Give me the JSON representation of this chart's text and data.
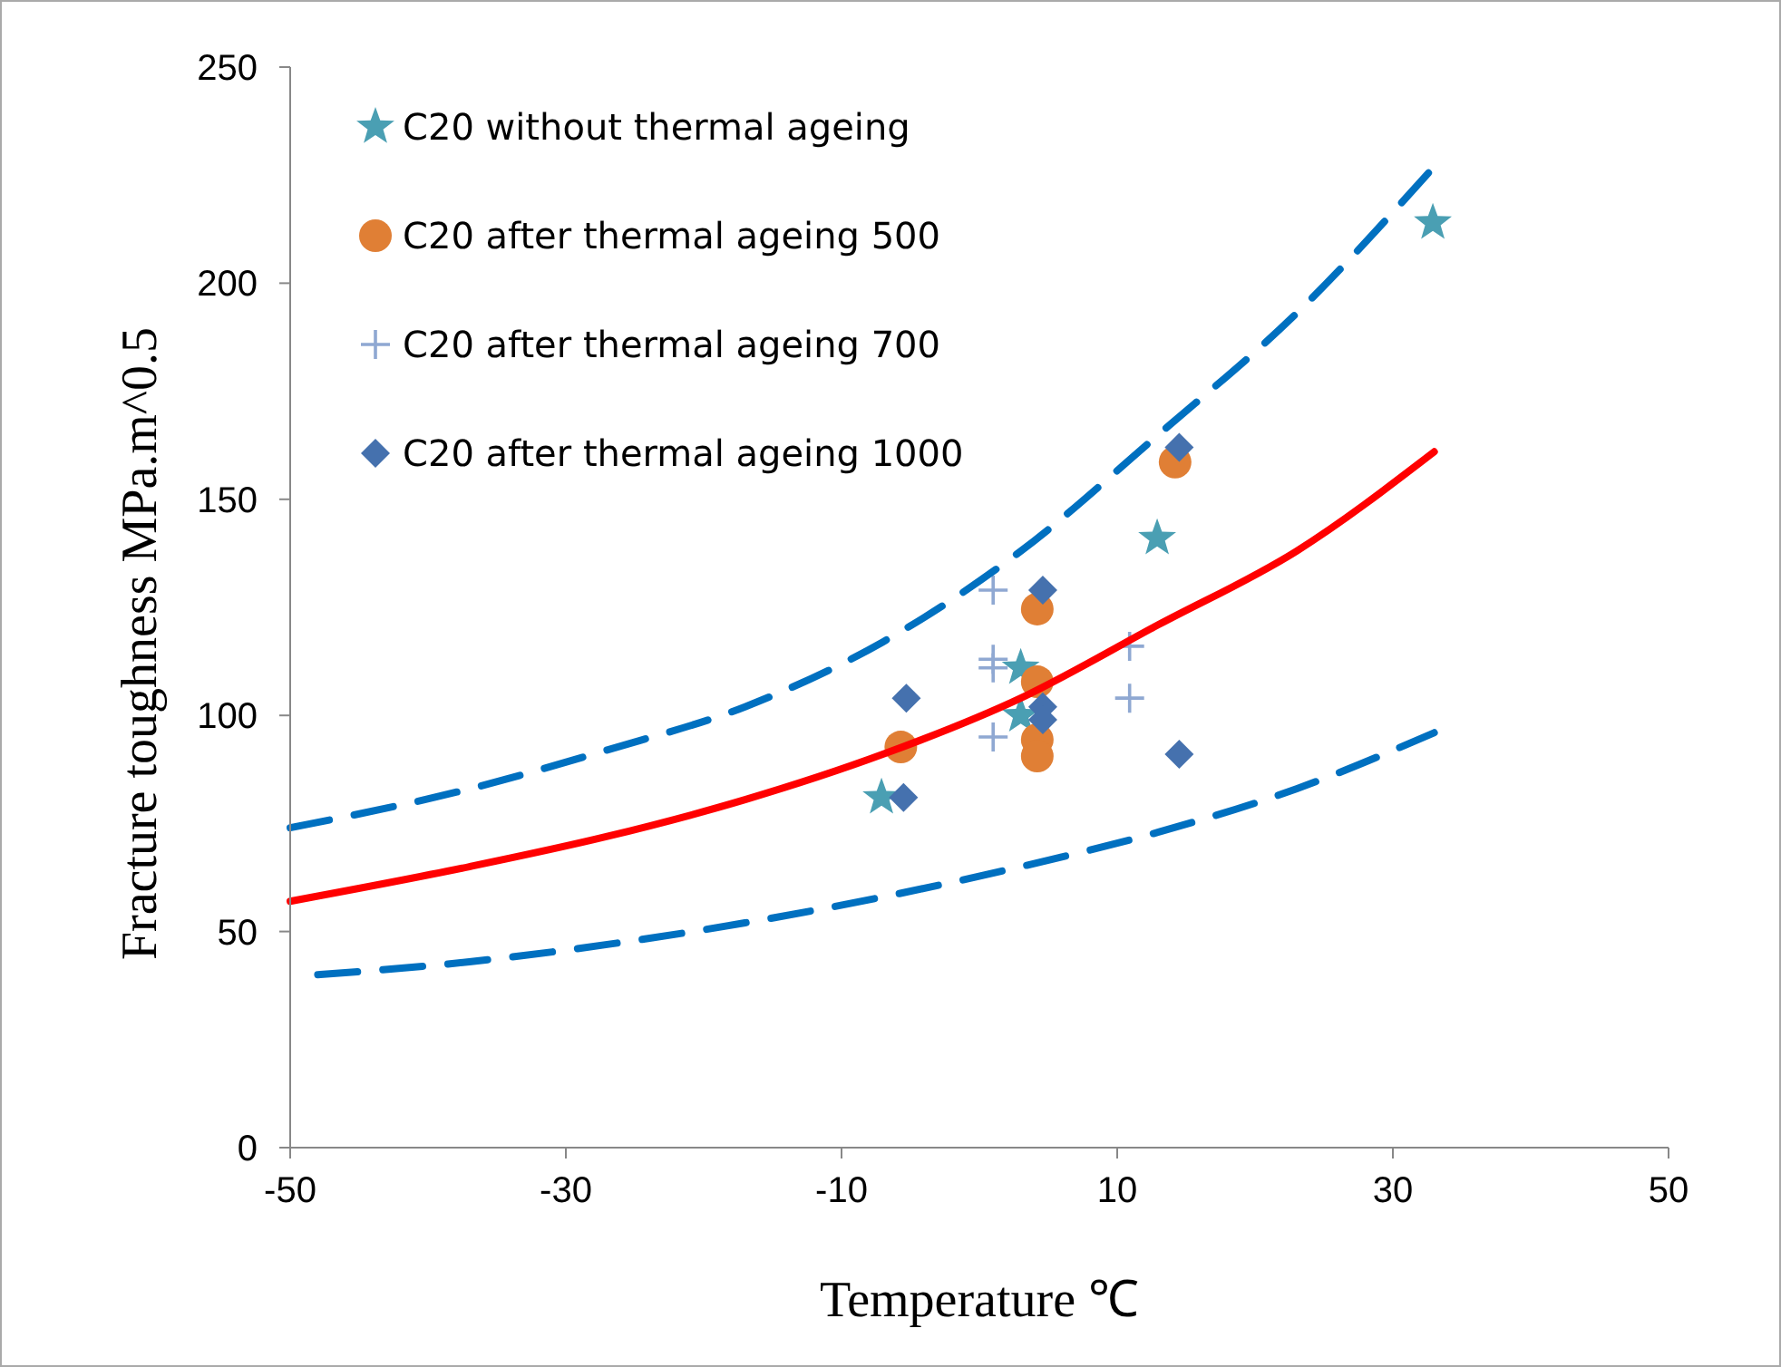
{
  "chart_data": {
    "type": "scatter",
    "xlabel": "Temperature ℃",
    "ylabel": "Fracture toughness  MPa.m^0.5",
    "xlim": [
      -50,
      50
    ],
    "ylim": [
      0,
      250
    ],
    "xticks": [
      -50,
      -30,
      -10,
      10,
      30,
      50
    ],
    "yticks": [
      0,
      50,
      100,
      150,
      200,
      250
    ],
    "grid": false,
    "legend": "top left",
    "series": [
      {
        "name": "C20 without thermal ageing",
        "color": "#4a9fb3",
        "marker": "star",
        "x": [
          -7.1,
          3.0,
          3.0,
          12.9,
          32.9
        ],
        "values": [
          81,
          111,
          100,
          141,
          214
        ]
      },
      {
        "name": "C20 after thermal ageing 500",
        "color": "#e07f35",
        "marker": "circle",
        "x": [
          -5.7,
          4.2,
          4.2,
          4.2,
          4.2,
          14.2
        ],
        "values": [
          92.7,
          124.6,
          107.8,
          94.4,
          90.6,
          158.6
        ]
      },
      {
        "name": "C20 after thermal ageing 700",
        "color": "#8fa8d2",
        "marker": "cross",
        "x": [
          1.0,
          1.0,
          1.0,
          1.0,
          10.9,
          10.9
        ],
        "values": [
          129,
          113,
          111,
          95,
          116,
          104
        ]
      },
      {
        "name": "C20 after thermal ageing 1000",
        "color": "#4571ae",
        "marker": "diamond",
        "x": [
          4.6,
          -5.3,
          4.6,
          4.6,
          14.5,
          -5.5,
          14.5
        ],
        "values": [
          129,
          104,
          102,
          99,
          91,
          81,
          162
        ]
      },
      {
        "type": "line",
        "color": "#ff0000",
        "marker": "none",
        "line_style": "solid",
        "x": [
          -50,
          -37,
          -27,
          -17,
          -7,
          3,
          13,
          23,
          33
        ],
        "values": [
          57,
          65,
          72,
          80.5,
          91,
          104,
          121,
          138,
          161
        ]
      },
      {
        "type": "line",
        "color": "#0070c0",
        "marker": "none",
        "line_style": "dashed",
        "x": [
          -50,
          -37,
          -27,
          -17,
          -7,
          3,
          13,
          23,
          33
        ],
        "values": [
          74,
          83,
          92,
          102,
          117,
          138,
          165,
          193,
          227
        ]
      },
      {
        "type": "line",
        "color": "#0070c0",
        "marker": "none",
        "line_style": "dashed",
        "x": [
          -48,
          -37,
          -27,
          -17,
          -7,
          3,
          13,
          23,
          33
        ],
        "values": [
          40,
          43,
          47,
          52,
          58,
          65,
          73,
          83,
          96
        ]
      }
    ]
  }
}
